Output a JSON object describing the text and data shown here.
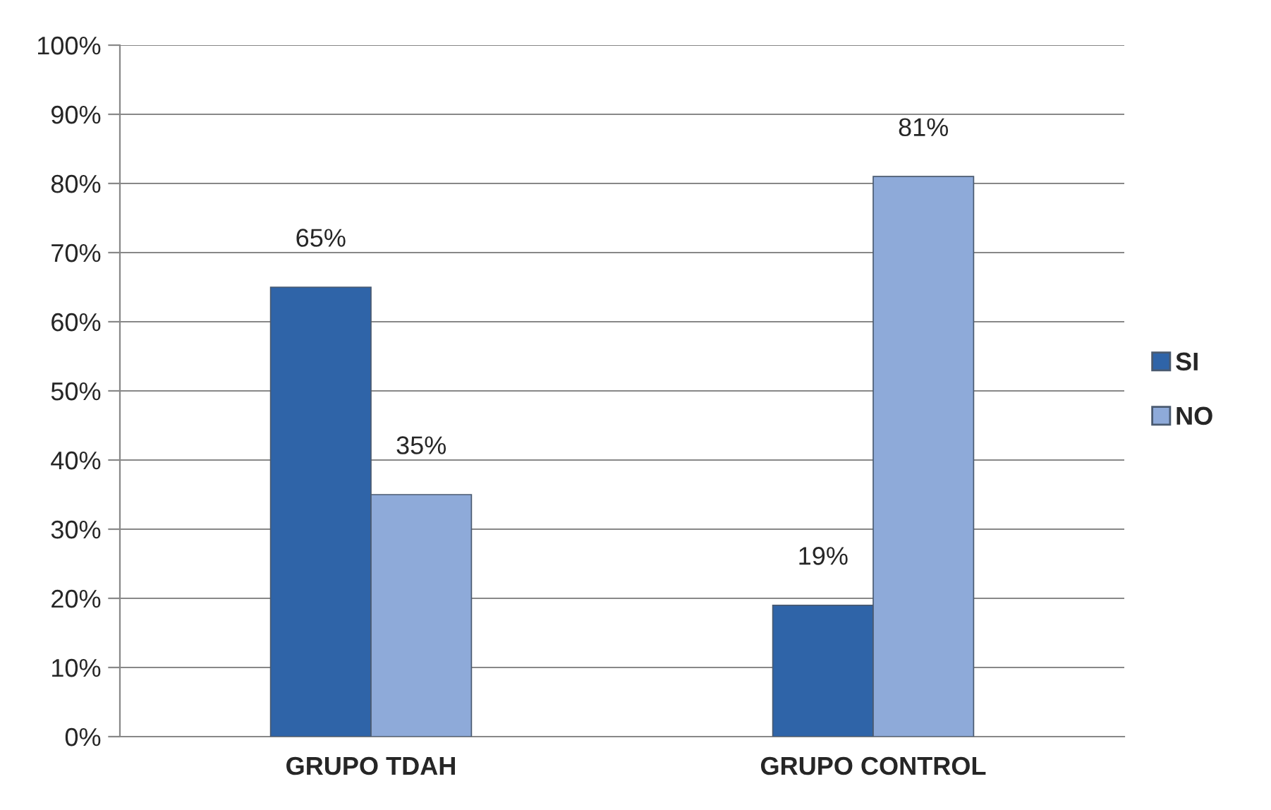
{
  "chart_data": {
    "type": "bar",
    "categories": [
      "GRUPO TDAH",
      "GRUPO CONTROL"
    ],
    "series": [
      {
        "name": "SI",
        "color": "#2f64a8",
        "values": [
          65,
          19
        ],
        "value_labels": [
          "65%",
          "19%"
        ]
      },
      {
        "name": "NO",
        "color": "#8eaad9",
        "values": [
          35,
          81
        ],
        "value_labels": [
          "35%",
          "81%"
        ]
      }
    ],
    "ylim": [
      0,
      100
    ],
    "yticks": [
      {
        "value": 0,
        "label": "0%"
      },
      {
        "value": 10,
        "label": "10%"
      },
      {
        "value": 20,
        "label": "20%"
      },
      {
        "value": 30,
        "label": "30%"
      },
      {
        "value": 40,
        "label": "40%"
      },
      {
        "value": 50,
        "label": "50%"
      },
      {
        "value": 60,
        "label": "60%"
      },
      {
        "value": 70,
        "label": "70%"
      },
      {
        "value": 80,
        "label": "80%"
      },
      {
        "value": 90,
        "label": "90%"
      },
      {
        "value": 100,
        "label": "100%"
      }
    ],
    "grid": "y",
    "legend": "right"
  }
}
